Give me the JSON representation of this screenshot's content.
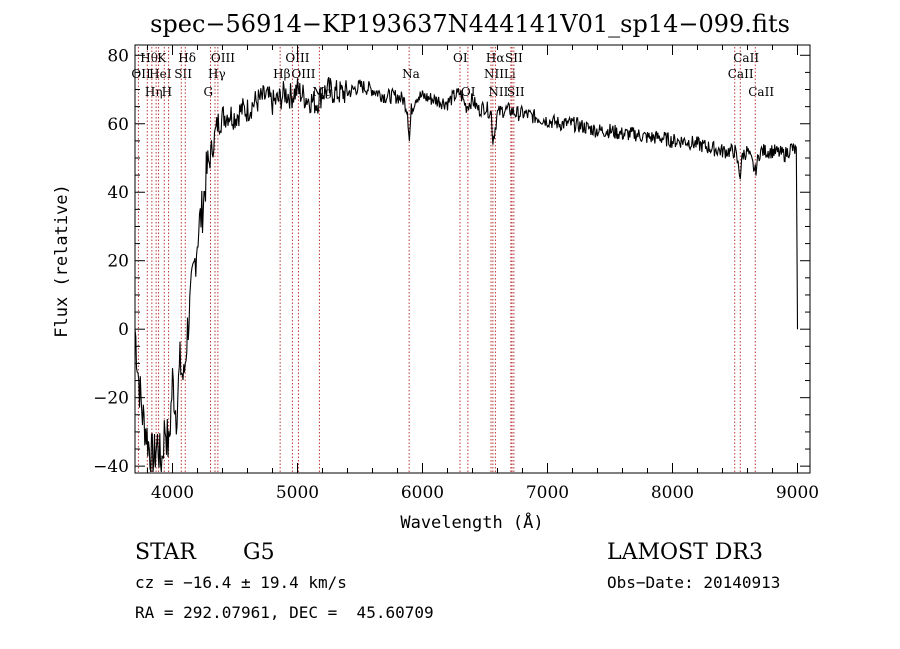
{
  "chart_data": {
    "type": "line",
    "title": "spec−56914−KP193637N444141V01_sp14−099.fits",
    "xlabel": "Wavelength (Å)",
    "ylabel": "Flux (relative)",
    "xlim": [
      3700,
      9100
    ],
    "ylim": [
      -42,
      83
    ],
    "xticks": [
      4000,
      5000,
      6000,
      7000,
      8000,
      9000
    ],
    "yticks": [
      -40,
      -20,
      0,
      20,
      40,
      60,
      80
    ],
    "series": [
      {
        "name": "flux",
        "x": [
          3700,
          3730,
          3760,
          3790,
          3820,
          3850,
          3880,
          3910,
          3940,
          3970,
          4000,
          4030,
          4060,
          4090,
          4120,
          4150,
          4180,
          4210,
          4240,
          4270,
          4300,
          4330,
          4360,
          4400,
          4450,
          4500,
          4550,
          4600,
          4650,
          4700,
          4750,
          4800,
          4850,
          4900,
          4950,
          5000,
          5050,
          5100,
          5150,
          5200,
          5250,
          5300,
          5400,
          5500,
          5600,
          5700,
          5800,
          5850,
          5880,
          5895,
          5910,
          5950,
          6000,
          6100,
          6200,
          6250,
          6300,
          6350,
          6400,
          6450,
          6500,
          6550,
          6563,
          6600,
          6650,
          6700,
          6750,
          6800,
          6900,
          7000,
          7100,
          7200,
          7300,
          7400,
          7500,
          7600,
          7700,
          7800,
          7900,
          8000,
          8100,
          8200,
          8300,
          8400,
          8500,
          8542,
          8560,
          8600,
          8662,
          8700,
          8800,
          8900,
          8950,
          8990,
          9000
        ],
        "values": [
          0,
          -15,
          -25,
          -30,
          -36,
          -38,
          -33,
          -40,
          -28,
          -35,
          -15,
          -25,
          -10,
          -15,
          0,
          10,
          20,
          30,
          35,
          45,
          50,
          55,
          60,
          62,
          63,
          62,
          64,
          64,
          66,
          67,
          68,
          66,
          67,
          69,
          68,
          70,
          68,
          67,
          66,
          69,
          70,
          69,
          69,
          71,
          70,
          68,
          68,
          67,
          64,
          55,
          64,
          68,
          68,
          67,
          66,
          68,
          69,
          65,
          67,
          64,
          65,
          63,
          55,
          63,
          64,
          64,
          63,
          63,
          62,
          61,
          60,
          60,
          59,
          58,
          58,
          57,
          57,
          56,
          56,
          55,
          55,
          54,
          53,
          52,
          52,
          45,
          51,
          52,
          46,
          52,
          52,
          51,
          53,
          52,
          0
        ]
      }
    ],
    "line_markers": [
      {
        "wavelength": 3727,
        "label": "OII",
        "row": 2
      },
      {
        "wavelength": 3798,
        "label": "Hθ",
        "row": 1
      },
      {
        "wavelength": 3835,
        "label": "Hη",
        "row": 3
      },
      {
        "wavelength": 3869,
        "label": "HeI",
        "row": 2
      },
      {
        "wavelength": 3889,
        "label": "",
        "row": 0
      },
      {
        "wavelength": 3934,
        "label": "K",
        "row": 1
      },
      {
        "wavelength": 3969,
        "label": "H",
        "row": 3
      },
      {
        "wavelength": 4070,
        "label": "SII",
        "row": 2
      },
      {
        "wavelength": 4102,
        "label": "Hδ",
        "row": 1
      },
      {
        "wavelength": 4304,
        "label": "G",
        "row": 3
      },
      {
        "wavelength": 4340,
        "label": "Hγ",
        "row": 2
      },
      {
        "wavelength": 4363,
        "label": "OIII",
        "row": 1
      },
      {
        "wavelength": 4861,
        "label": "Hβ",
        "row": 2
      },
      {
        "wavelength": 4959,
        "label": "OIII",
        "row": 1
      },
      {
        "wavelength": 5007,
        "label": "OIII",
        "row": 2
      },
      {
        "wavelength": 5175,
        "label": "Mg",
        "row": 3
      },
      {
        "wavelength": 5893,
        "label": "Na",
        "row": 2
      },
      {
        "wavelength": 6300,
        "label": "OI",
        "row": 1
      },
      {
        "wavelength": 6363,
        "label": "OI",
        "row": 3
      },
      {
        "wavelength": 6548,
        "label": "NII",
        "row": 2
      },
      {
        "wavelength": 6563,
        "label": "Hα",
        "row": 1
      },
      {
        "wavelength": 6583,
        "label": "NII",
        "row": 3
      },
      {
        "wavelength": 6707,
        "label": "Li",
        "row": 2
      },
      {
        "wavelength": 6716,
        "label": "SII",
        "row": 1
      },
      {
        "wavelength": 6731,
        "label": "SII",
        "row": 3
      },
      {
        "wavelength": 8498,
        "label": "CaII",
        "row": 2
      },
      {
        "wavelength": 8542,
        "label": "CaII",
        "row": 1
      },
      {
        "wavelength": 8662,
        "label": "CaII",
        "row": 3
      }
    ],
    "marker_color": "#b22222",
    "line_color": "#000000"
  },
  "footer": {
    "object_type": "STAR",
    "subclass": "G5",
    "survey": "LAMOST DR3",
    "redshift": "cz = −16.4 ± 19.4 km/s",
    "obs_date": "Obs−Date: 20140913",
    "coords": "RA = 292.07961, DEC =  45.60709"
  }
}
